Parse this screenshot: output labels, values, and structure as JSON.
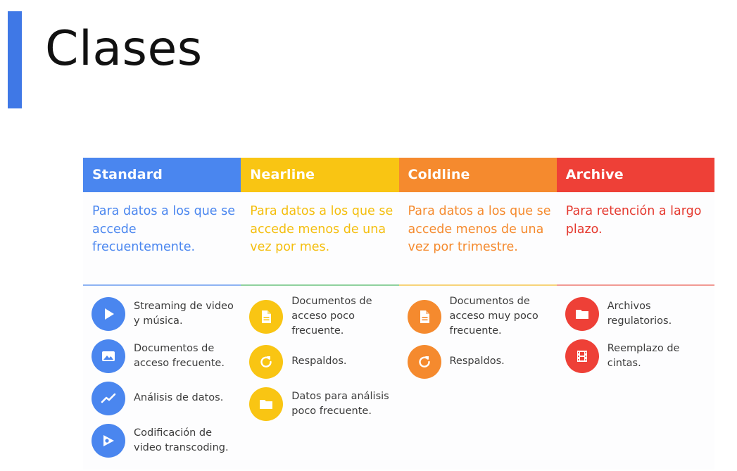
{
  "slide": {
    "title": "Clases"
  },
  "colors": {
    "accent_bar": "#3f78e6",
    "standard": "#4a86ef",
    "nearline": "#f9c513",
    "coldline": "#f58a2e",
    "archive": "#ee4037"
  },
  "columns": [
    {
      "name": "Standard",
      "description": "Para datos a los que se accede frecuentemente.",
      "items": [
        {
          "icon": "play-icon",
          "label": "Streaming de video y música."
        },
        {
          "icon": "image-icon",
          "label": "Documentos de acceso frecuente."
        },
        {
          "icon": "trend-line-icon",
          "label": "Análisis de datos."
        },
        {
          "icon": "video-transcode-icon",
          "label": "Codificación de video transcoding."
        }
      ]
    },
    {
      "name": "Nearline",
      "description": "Para datos a los que se accede menos de una vez por mes.",
      "items": [
        {
          "icon": "document-icon",
          "label": "Documentos de acceso poco frecuente."
        },
        {
          "icon": "backup-icon",
          "label": "Respaldos."
        },
        {
          "icon": "folder-icon",
          "label": "Datos para análisis poco frecuente."
        }
      ]
    },
    {
      "name": "Coldline",
      "description": "Para datos a los que se accede menos de una vez por trimestre.",
      "items": [
        {
          "icon": "document-icon",
          "label": "Documentos de acceso muy poco frecuente."
        },
        {
          "icon": "backup-icon",
          "label": "Respaldos."
        }
      ]
    },
    {
      "name": "Archive",
      "description": "Para retención a largo plazo.",
      "items": [
        {
          "icon": "folder-icon",
          "label": "Archivos regulatorios."
        },
        {
          "icon": "film-icon",
          "label": "Reemplazo de cintas."
        }
      ]
    }
  ]
}
